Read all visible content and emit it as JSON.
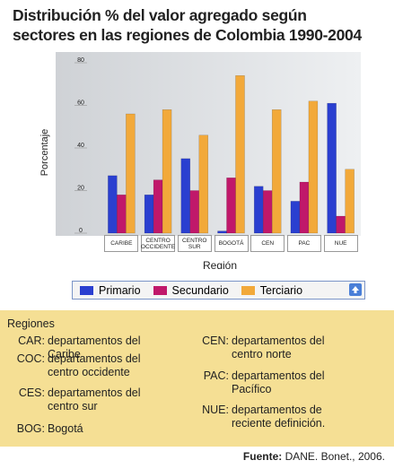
{
  "chart_data": {
    "type": "bar",
    "title": "Distribución % del valor agregado según sectores en las regiones de Colombia 1990-2004",
    "y_label": "Porcentaje",
    "x_label": "Región",
    "categories": [
      "CARIBE",
      "CENTRO OCCIDENTE",
      "CENTRO SUR",
      "BOGOTÁ",
      "CEN",
      "PAC",
      "NUE"
    ],
    "series": [
      {
        "name": "Primario",
        "color": "#2a3fd0",
        "values": [
          27,
          18,
          35,
          1,
          22,
          15,
          61
        ]
      },
      {
        "name": "Secundario",
        "color": "#c0186a",
        "values": [
          18,
          25,
          20,
          26,
          20,
          24,
          8
        ]
      },
      {
        "name": "Terciario",
        "color": "#f2a93a",
        "values": [
          56,
          58,
          46,
          74,
          58,
          62,
          30
        ]
      }
    ],
    "ylim": [
      0,
      80
    ],
    "yticks": [
      0,
      20,
      40,
      60,
      80
    ]
  },
  "notes": {
    "heading": "Regiones",
    "items": [
      {
        "code": "CAR:",
        "text": "departamentos del Caribe"
      },
      {
        "code": "COC:",
        "text": "departamentos del centro occidente"
      },
      {
        "code": "CES:",
        "text": "departamentos del centro sur"
      },
      {
        "code": "BOG:",
        "text": "Bogotá"
      },
      {
        "code": "CEN:",
        "text": "departamentos del centro norte"
      },
      {
        "code": "PAC:",
        "text": "departamentos del Pacífico"
      },
      {
        "code": "NUE:",
        "text": "departamentos de reciente definición."
      }
    ]
  },
  "source": {
    "label": "Fuente:",
    "text": "DANE. Bonet., 2006."
  }
}
